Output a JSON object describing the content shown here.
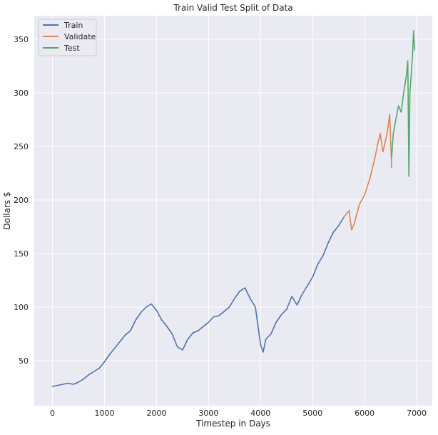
{
  "chart_data": {
    "type": "line",
    "title": "Train Valid Test Split of Data",
    "xlabel": "Timestep in Days",
    "ylabel": "Dollars $",
    "xlim": [
      -350,
      7300
    ],
    "ylim": [
      8,
      372
    ],
    "x_ticks": [
      0,
      1000,
      2000,
      3000,
      4000,
      5000,
      6000,
      7000
    ],
    "y_ticks": [
      50,
      100,
      150,
      200,
      250,
      300,
      350
    ],
    "grid": true,
    "legend_position": "top-left",
    "colors": {
      "background": "#eaeaf2",
      "grid": "#ffffff",
      "train": "#4c72b0",
      "validate": "#dd8452",
      "test": "#55a868"
    },
    "series": [
      {
        "name": "Train",
        "x": [
          0,
          100,
          200,
          300,
          400,
          500,
          600,
          700,
          800,
          900,
          1000,
          1100,
          1200,
          1300,
          1400,
          1500,
          1600,
          1700,
          1800,
          1900,
          2000,
          2100,
          2200,
          2300,
          2400,
          2500,
          2600,
          2700,
          2800,
          2900,
          3000,
          3100,
          3200,
          3300,
          3400,
          3500,
          3600,
          3700,
          3800,
          3900,
          4000,
          4050,
          4100,
          4200,
          4300,
          4400,
          4500,
          4600,
          4700,
          4800,
          4900,
          5000,
          5100,
          5200,
          5300,
          5400,
          5500,
          5600
        ],
        "y": [
          26,
          27,
          28,
          29,
          28,
          30,
          33,
          37,
          40,
          43,
          49,
          56,
          62,
          68,
          74,
          78,
          88,
          95,
          100,
          103,
          97,
          88,
          82,
          75,
          63,
          60,
          70,
          76,
          78,
          82,
          86,
          91,
          92,
          96,
          100,
          108,
          115,
          118,
          108,
          100,
          65,
          58,
          70,
          75,
          86,
          93,
          98,
          110,
          102,
          112,
          120,
          128,
          140,
          148,
          160,
          170,
          176,
          184
        ]
      },
      {
        "name": "Validate",
        "x": [
          5600,
          5700,
          5750,
          5800,
          5900,
          6000,
          6100,
          6200,
          6250,
          6300,
          6350,
          6400,
          6450,
          6480,
          6520
        ],
        "y": [
          184,
          190,
          172,
          178,
          196,
          205,
          220,
          240,
          252,
          262,
          245,
          255,
          268,
          280,
          230
        ],
        "name_override": ""
      },
      {
        "name": "Test",
        "x": [
          6520,
          6550,
          6600,
          6650,
          6700,
          6750,
          6800,
          6830,
          6850,
          6870,
          6900,
          6920,
          6940,
          6960
        ],
        "y": [
          240,
          262,
          275,
          288,
          282,
          300,
          315,
          330,
          222,
          300,
          320,
          335,
          358,
          340
        ]
      }
    ]
  }
}
